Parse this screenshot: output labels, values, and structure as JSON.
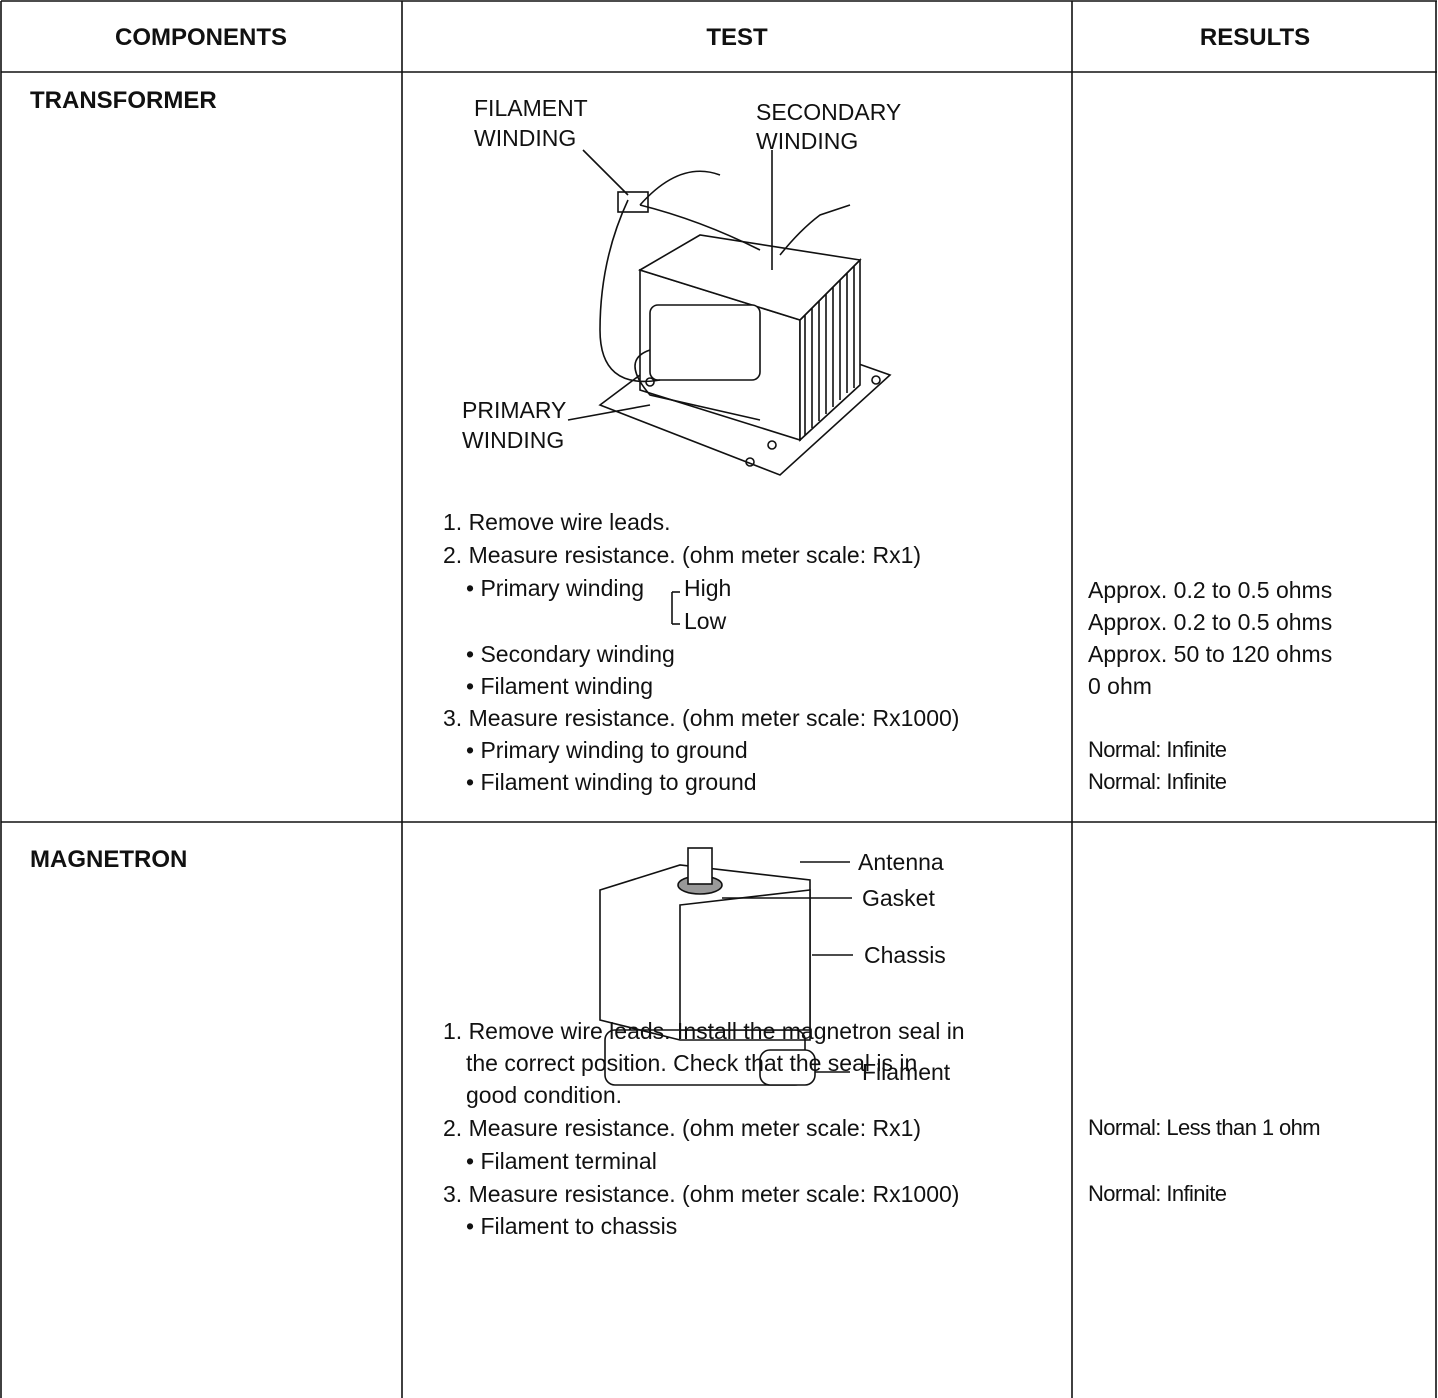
{
  "table": {
    "header": [
      "COMPONENTS",
      "TEST",
      "RESULTS"
    ],
    "rows": [
      {
        "component": "TRANSFORMER",
        "figure_labels": [
          [
            "FILAMENT",
            "WINDING"
          ],
          [
            "SECONDARY",
            "WINDING"
          ],
          [
            "PRIMARY",
            "WINDING"
          ]
        ],
        "steps": [
          "1. Remove wire leads.",
          "2. Measure resistance. (ohm meter scale: Rx1)",
          "• Primary winding",
          "High",
          "Low",
          "• Secondary winding",
          "• Filament winding",
          "3. Measure resistance. (ohm meter scale: Rx1000)",
          "• Primary winding to ground",
          "• Filament winding to ground"
        ],
        "results": [
          "Approx. 0.2 to 0.5 ohms",
          "Approx. 0.2 to 0.5 ohms",
          "Approx. 50 to 120 ohms",
          "0 ohm",
          "Normal: Infinite",
          "Normal: Infinite"
        ]
      },
      {
        "component": "MAGNETRON",
        "figure_labels": [
          "Antenna",
          "Gasket",
          "Chassis",
          "Filament"
        ],
        "steps": [
          "1. Remove wire leads. Install the magnetron seal in",
          "the correct position. Check that the seal is in",
          "good condition.",
          "2. Measure resistance. (ohm meter scale: Rx1)",
          "• Filament terminal",
          "3. Measure resistance. (ohm meter scale: Rx1000)",
          "• Filament to chassis"
        ],
        "results": [
          "Normal: Less than 1 ohm",
          "Normal: Infinite"
        ]
      }
    ]
  }
}
